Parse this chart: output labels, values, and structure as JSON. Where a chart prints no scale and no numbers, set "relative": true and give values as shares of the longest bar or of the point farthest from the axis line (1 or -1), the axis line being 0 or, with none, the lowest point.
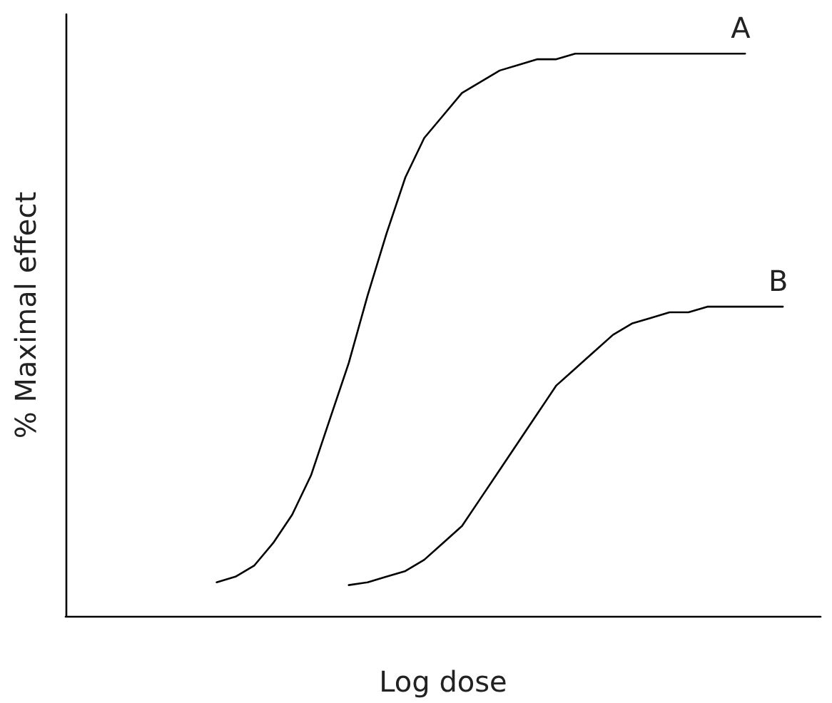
{
  "chart_data": {
    "type": "line",
    "relative": true,
    "xlabel": "Log dose",
    "ylabel": "% Maximal effect",
    "grid": false,
    "legend": false,
    "marker": "none",
    "line_style": "solid",
    "categories": [
      null,
      null,
      null,
      null,
      null,
      null,
      null,
      null,
      null,
      null,
      null,
      null,
      null,
      null,
      null,
      null,
      null,
      null,
      null,
      null,
      null,
      null,
      null,
      null,
      null,
      null,
      null,
      null,
      null,
      null,
      null,
      null,
      null,
      null,
      null,
      null,
      null,
      null,
      null,
      null,
      null
    ],
    "series": [
      {
        "name": "A",
        "color": "#000000",
        "values": [
          null,
          null,
          null,
          null,
          null,
          null,
          null,
          null,
          0.06,
          0.07,
          0.09,
          0.13,
          0.18,
          0.25,
          0.35,
          0.45,
          0.57,
          0.68,
          0.78,
          0.85,
          0.89,
          0.93,
          0.95,
          0.97,
          0.98,
          0.99,
          0.99,
          1,
          1,
          1,
          1,
          1,
          1,
          1,
          1,
          1,
          1,
          null,
          null,
          null,
          null
        ]
      },
      {
        "name": "B",
        "color": "#000000",
        "values": [
          null,
          null,
          null,
          null,
          null,
          null,
          null,
          null,
          null,
          null,
          null,
          null,
          null,
          null,
          null,
          0.055,
          0.06,
          0.07,
          0.08,
          0.1,
          0.13,
          0.16,
          0.21,
          0.26,
          0.31,
          0.36,
          0.41,
          0.44,
          0.47,
          0.5,
          0.52,
          0.53,
          0.54,
          0.54,
          0.55,
          0.55,
          0.55,
          0.55,
          0.55,
          null,
          null
        ]
      }
    ]
  }
}
